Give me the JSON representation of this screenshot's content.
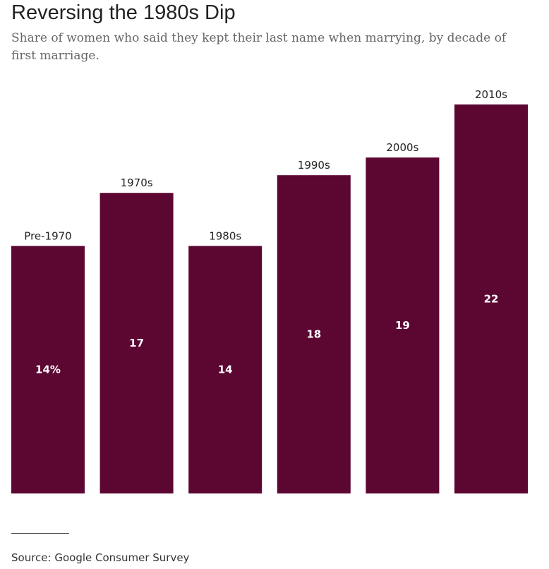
{
  "header": {
    "title": "Reversing the 1980s Dip",
    "subtitle": "Share of women who said they kept their last name when marrying, by decade of first marriage."
  },
  "footer": {
    "source": "Source: Google Consumer Survey"
  },
  "chart_data": {
    "type": "bar",
    "title": "Reversing the 1980s Dip",
    "subtitle": "Share of women who said they kept their last name when marrying, by decade of first marriage.",
    "categories": [
      "Pre-1970",
      "1970s",
      "1980s",
      "1990s",
      "2000s",
      "2010s"
    ],
    "values": [
      14,
      17,
      14,
      18,
      19,
      22
    ],
    "value_labels": [
      "14%",
      "17",
      "14",
      "18",
      "19",
      "22"
    ],
    "unit": "%",
    "ylim": [
      0,
      22
    ],
    "grid": false,
    "legend": "none",
    "bar_color": "#5c0632",
    "label_color": "#ffffff"
  }
}
